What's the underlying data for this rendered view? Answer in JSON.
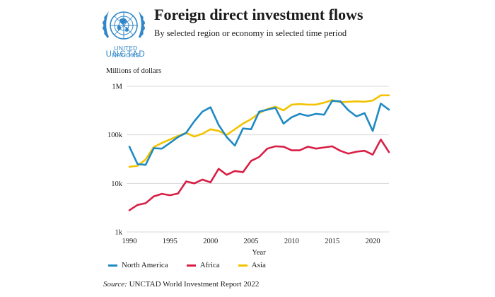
{
  "header": {
    "title": "Foreign direct investment flows",
    "subtitle": "By selected region or economy in selected time period",
    "logo_line1": "UNITED NATIONS",
    "logo_line2": "UNCTAD"
  },
  "colors": {
    "north_america": "#1f8ac3",
    "africa": "#d81f45",
    "asia": "#f2c300",
    "un_blue": "#2f86c8",
    "grid": "#d9d9d9"
  },
  "source": {
    "label": "Source:",
    "text": " UNCTAD World Investment Report 2022"
  },
  "chart_data": {
    "type": "line",
    "ylabel": "Millions of dollars",
    "xlabel": "Year",
    "yscale": "log",
    "ylim": [
      1000,
      1000000
    ],
    "xlim": [
      1990,
      2022
    ],
    "yticks": [
      1000,
      10000,
      100000,
      1000000
    ],
    "ytick_labels": [
      "1k",
      "10k",
      "100k",
      "1M"
    ],
    "xticks": [
      1990,
      1995,
      2000,
      2005,
      2010,
      2015,
      2020
    ],
    "xtick_labels": [
      "1990",
      "1995",
      "2000",
      "2005",
      "2010",
      "2015",
      "2020"
    ],
    "grid": "horizontal",
    "legend_position": "bottom",
    "x": [
      1990,
      1991,
      1992,
      1993,
      1994,
      1995,
      1996,
      1997,
      1998,
      1999,
      2000,
      2001,
      2002,
      2003,
      2004,
      2005,
      2006,
      2007,
      2008,
      2009,
      2010,
      2011,
      2012,
      2013,
      2014,
      2015,
      2016,
      2017,
      2018,
      2019,
      2020,
      2021,
      2022
    ],
    "series": [
      {
        "name": "North America",
        "color": "#1f8ac3",
        "values": [
          57000,
          25000,
          24000,
          53000,
          52000,
          68000,
          90000,
          110000,
          190000,
          300000,
          370000,
          160000,
          90000,
          60000,
          135000,
          130000,
          300000,
          330000,
          360000,
          170000,
          230000,
          270000,
          245000,
          270000,
          260000,
          500000,
          490000,
          320000,
          240000,
          280000,
          120000,
          440000,
          330000
        ]
      },
      {
        "name": "Africa",
        "color": "#d81f45",
        "values": [
          2800,
          3600,
          3900,
          5400,
          6100,
          5700,
          6200,
          11000,
          10000,
          12000,
          10500,
          20000,
          15000,
          18000,
          17000,
          29000,
          35000,
          52000,
          58000,
          57000,
          48000,
          48000,
          57000,
          52000,
          55000,
          58000,
          47000,
          41000,
          45000,
          47000,
          39000,
          80000,
          44000
        ]
      },
      {
        "name": "Asia",
        "color": "#f2c300",
        "values": [
          22000,
          23000,
          31000,
          56000,
          68000,
          80000,
          95000,
          110000,
          92000,
          105000,
          130000,
          120000,
          100000,
          130000,
          170000,
          210000,
          280000,
          340000,
          380000,
          320000,
          420000,
          430000,
          420000,
          420000,
          460000,
          520000,
          470000,
          480000,
          490000,
          480000,
          510000,
          650000,
          650000
        ]
      }
    ]
  }
}
